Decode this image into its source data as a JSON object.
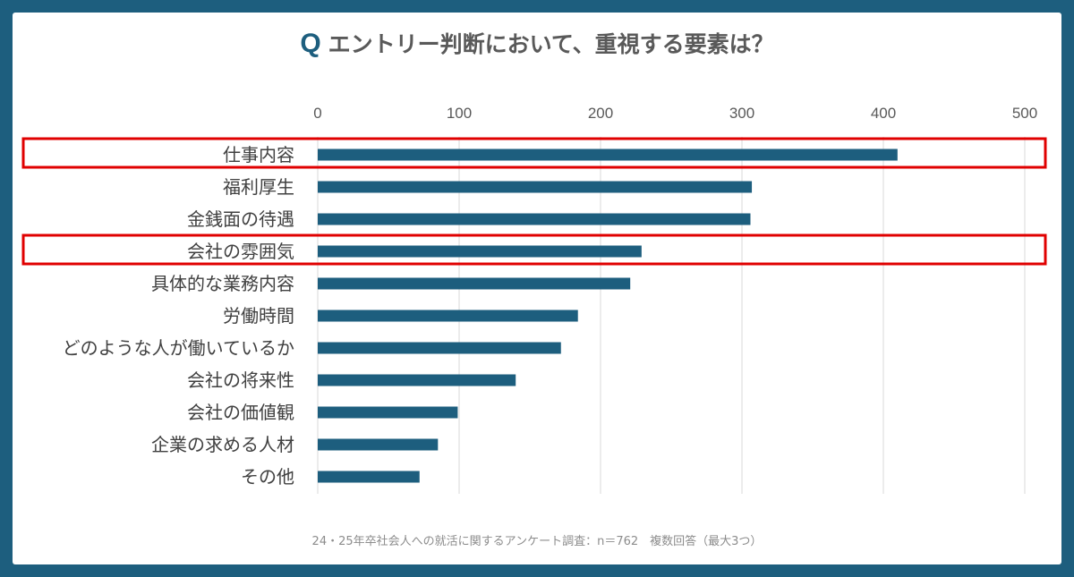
{
  "title_q": "Q",
  "title_text": "エントリー判断において、重視する要素は？",
  "footnote": "24・25年卒社会人への就活に関するアンケート調査：n＝762　複数回答（最大3つ）",
  "colors": {
    "bar": "#1d5e7e",
    "frame": "#1d5e7e",
    "highlight": "#e00000",
    "grid": "#d9d9d9"
  },
  "chart_data": {
    "type": "bar",
    "orientation": "horizontal",
    "categories": [
      "仕事内容",
      "福利厚生",
      "金銭面の待遇",
      "会社の雰囲気",
      "具体的な業務内容",
      "労働時間",
      "どのような人が働いているか",
      "会社の将来性",
      "会社の価値観",
      "企業の求める人材",
      "その他"
    ],
    "values": [
      410,
      307,
      306,
      229,
      221,
      184,
      172,
      140,
      99,
      85,
      72
    ],
    "xlim": [
      0,
      500
    ],
    "xticks": [
      0,
      100,
      200,
      300,
      400,
      500
    ],
    "xtick_labels": [
      "0",
      "100",
      "200",
      "300",
      "400",
      "500"
    ],
    "x_axis_position": "top",
    "grid": true,
    "highlighted_categories": [
      "仕事内容",
      "会社の雰囲気"
    ]
  }
}
